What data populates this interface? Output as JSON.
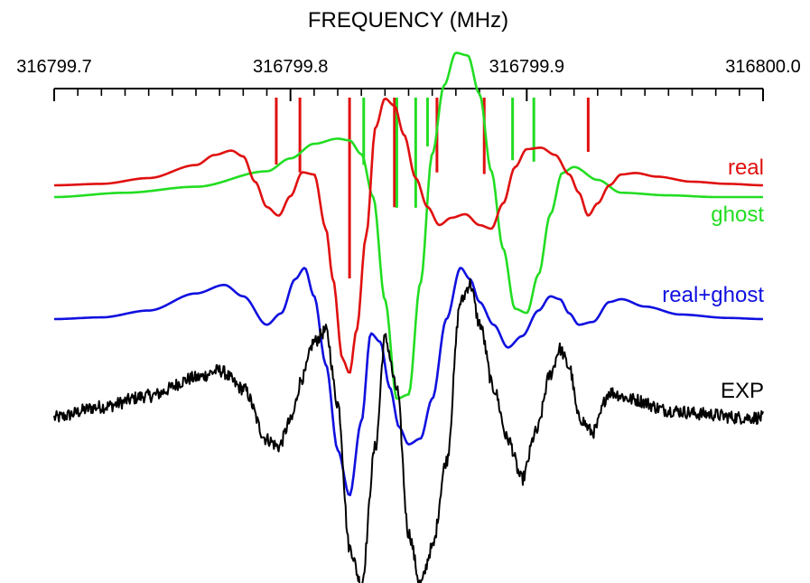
{
  "chart_data": {
    "type": "line",
    "title": "FREQUENCY (MHz)",
    "xlim": [
      316799.7,
      316800.0
    ],
    "x_ticks": [
      316799.7,
      316799.8,
      316799.9,
      316800.0
    ],
    "x_tick_labels": [
      "316799.7",
      "316799.8",
      "316799.9",
      "316800.0"
    ],
    "x_axis_position": "top",
    "grid": false,
    "legend": "inline labels at right end of each trace",
    "colors": {
      "real": "#e01010",
      "ghost": "#22dd22",
      "real+ghost": "#1010e0",
      "EXP": "#000000"
    },
    "stick_spectra": [
      {
        "name": "real",
        "color": "#e01010",
        "lines": [
          {
            "x": 316799.794,
            "intensity": 0.28
          },
          {
            "x": 316799.804,
            "intensity": 0.33
          },
          {
            "x": 316799.825,
            "intensity": 1.0
          },
          {
            "x": 316799.844,
            "intensity": 0.55
          },
          {
            "x": 316799.862,
            "intensity": 0.33
          },
          {
            "x": 316799.882,
            "intensity": 0.34
          },
          {
            "x": 316799.926,
            "intensity": 0.2
          }
        ]
      },
      {
        "name": "ghost",
        "color": "#22dd22",
        "lines": [
          {
            "x": 316799.831,
            "intensity": 0.29
          },
          {
            "x": 316799.845,
            "intensity": 0.57
          },
          {
            "x": 316799.853,
            "intensity": 0.57
          },
          {
            "x": 316799.858,
            "intensity": 0.17
          },
          {
            "x": 316799.894,
            "intensity": 0.26
          },
          {
            "x": 316799.903,
            "intensity": 0.27
          }
        ]
      }
    ],
    "series": [
      {
        "name": "real",
        "label": "real",
        "color": "#e01010",
        "baseline": 0,
        "x": [
          316799.7,
          316799.72,
          316799.74,
          316799.76,
          316799.768,
          316799.775,
          316799.78,
          316799.785,
          316799.79,
          316799.795,
          316799.8,
          316799.805,
          316799.81,
          316799.815,
          316799.818,
          316799.822,
          316799.825,
          316799.828,
          316799.832,
          316799.836,
          316799.84,
          316799.844,
          316799.848,
          316799.853,
          316799.858,
          316799.863,
          316799.868,
          316799.874,
          316799.88,
          316799.885,
          316799.89,
          316799.895,
          316799.9,
          316799.906,
          316799.912,
          316799.918,
          316799.922,
          316799.926,
          316799.93,
          316799.935,
          316799.94,
          316799.946,
          316799.955,
          316799.97,
          316799.985,
          316800.0
        ],
        "y": [
          0.0,
          0.02,
          0.1,
          0.28,
          0.42,
          0.48,
          0.4,
          0.05,
          -0.3,
          -0.42,
          -0.15,
          0.18,
          0.15,
          -0.6,
          -1.3,
          -2.4,
          -2.6,
          -2.0,
          -0.7,
          0.8,
          1.2,
          1.1,
          0.7,
          0.1,
          -0.3,
          -0.55,
          -0.45,
          -0.4,
          -0.55,
          -0.6,
          -0.25,
          0.25,
          0.5,
          0.52,
          0.42,
          0.15,
          -0.1,
          -0.42,
          -0.25,
          0.0,
          0.15,
          0.17,
          0.12,
          0.05,
          0.02,
          0.0
        ]
      },
      {
        "name": "ghost",
        "label": "ghost",
        "color": "#22dd22",
        "baseline": 0,
        "x": [
          316799.7,
          316799.73,
          316799.76,
          316799.79,
          316799.8,
          316799.81,
          316799.82,
          316799.825,
          316799.83,
          316799.835,
          316799.84,
          316799.845,
          316799.85,
          316799.855,
          316799.86,
          316799.865,
          316799.87,
          316799.875,
          316799.88,
          316799.885,
          316799.89,
          316799.895,
          316799.9,
          316799.905,
          316799.91,
          316799.915,
          316799.92,
          316799.93,
          316799.94,
          316799.96,
          316799.98,
          316800.0
        ],
        "y": [
          0.0,
          0.05,
          0.12,
          0.3,
          0.45,
          0.62,
          0.68,
          0.66,
          0.5,
          0.0,
          -1.2,
          -2.35,
          -2.3,
          -1.0,
          0.5,
          1.3,
          1.68,
          1.65,
          1.2,
          0.3,
          -0.6,
          -1.3,
          -1.35,
          -0.9,
          -0.2,
          0.28,
          0.35,
          0.2,
          0.05,
          0.02,
          0.0,
          0.0
        ]
      },
      {
        "name": "real+ghost",
        "label": "real+ghost",
        "color": "#1010e0",
        "baseline": 0,
        "x": [
          316799.7,
          316799.72,
          316799.74,
          316799.76,
          316799.772,
          316799.78,
          316799.79,
          316799.796,
          316799.802,
          316799.806,
          316799.81,
          316799.815,
          316799.82,
          316799.825,
          316799.83,
          316799.834,
          316799.838,
          316799.842,
          316799.846,
          316799.85,
          316799.855,
          316799.86,
          316799.866,
          316799.872,
          316799.876,
          316799.88,
          316799.886,
          316799.892,
          316799.898,
          316799.905,
          316799.91,
          316799.914,
          316799.918,
          316799.922,
          316799.928,
          316799.935,
          316799.94,
          316799.95,
          316799.965,
          316799.985,
          316800.0
        ],
        "y": [
          0.0,
          0.03,
          0.15,
          0.45,
          0.6,
          0.4,
          -0.1,
          0.1,
          0.7,
          0.9,
          0.4,
          -0.8,
          -2.3,
          -3.1,
          -1.8,
          -0.25,
          -0.4,
          -1.2,
          -1.9,
          -2.2,
          -2.1,
          -1.4,
          0.0,
          0.9,
          0.7,
          0.3,
          -0.1,
          -0.5,
          -0.3,
          0.15,
          0.4,
          0.35,
          0.1,
          -0.1,
          -0.05,
          0.3,
          0.35,
          0.22,
          0.08,
          0.02,
          0.0
        ]
      },
      {
        "name": "EXP",
        "label": "EXP",
        "color": "#000000",
        "baseline": 0,
        "noise": 0.09,
        "x": [
          316799.7,
          316799.72,
          316799.74,
          316799.76,
          316799.77,
          316799.78,
          316799.79,
          316799.795,
          316799.8,
          316799.805,
          316799.81,
          316799.815,
          316799.82,
          316799.825,
          316799.83,
          316799.836,
          316799.84,
          316799.845,
          316799.85,
          316799.855,
          316799.86,
          316799.866,
          316799.872,
          316799.876,
          316799.88,
          316799.886,
          316799.892,
          316799.898,
          316799.904,
          316799.91,
          316799.914,
          316799.918,
          316799.922,
          316799.928,
          316799.935,
          316799.945,
          316799.96,
          316799.975,
          316799.99,
          316800.0
        ],
        "y": [
          0.0,
          0.15,
          0.3,
          0.55,
          0.65,
          0.4,
          -0.3,
          -0.4,
          -0.05,
          0.55,
          1.05,
          1.2,
          0.2,
          -1.8,
          -2.3,
          -0.4,
          1.1,
          0.4,
          -1.6,
          -2.3,
          -1.8,
          -0.6,
          1.6,
          1.85,
          1.3,
          0.4,
          -0.3,
          -0.85,
          -0.2,
          0.6,
          0.95,
          0.7,
          0.0,
          -0.2,
          0.35,
          0.25,
          0.1,
          0.05,
          0.0,
          0.0
        ]
      }
    ]
  }
}
